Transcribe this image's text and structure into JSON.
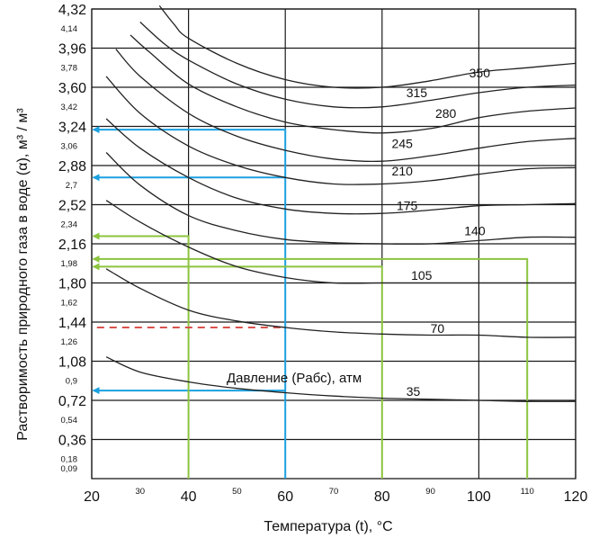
{
  "chart_data": {
    "type": "line",
    "xlabel": "Температура (t), °C",
    "ylabel": "Растворимость природного газа в воде (α), м³ / м³",
    "xlim": [
      20,
      120
    ],
    "ylim": [
      0,
      4.32
    ],
    "x_major_ticks": [
      "20",
      "40",
      "60",
      "80",
      "100",
      "120"
    ],
    "x_minor_ticks": [
      "30",
      "50",
      "70",
      "90",
      "110"
    ],
    "y_major_ticks": [
      "4,32",
      "3,96",
      "3,60",
      "3,24",
      "2,88",
      "2,52",
      "2,16",
      "1,80",
      "1,44",
      "1,08",
      "0,72",
      "0,36"
    ],
    "y_minor_ticks": [
      "4,14",
      "3,78",
      "3,42",
      "3,06",
      "2,7",
      "2,34",
      "1,98",
      "1,62",
      "1,26",
      "0,9",
      "0,54",
      "0,18",
      "0,09"
    ],
    "annotation": "Давление (Pабс), атм",
    "grid": true,
    "series": [
      {
        "name": "35",
        "x": [
          23,
          30,
          40,
          50,
          60,
          70,
          80,
          90,
          100,
          110,
          120
        ],
        "y": [
          1.12,
          0.98,
          0.89,
          0.83,
          0.79,
          0.76,
          0.74,
          0.73,
          0.72,
          0.71,
          0.71
        ]
      },
      {
        "name": "70",
        "x": [
          23,
          30,
          40,
          50,
          60,
          70,
          80,
          90,
          100,
          110,
          120
        ],
        "y": [
          1.93,
          1.75,
          1.55,
          1.45,
          1.39,
          1.35,
          1.33,
          1.32,
          1.32,
          1.3,
          1.3
        ]
      },
      {
        "name": "105",
        "x": [
          23,
          30,
          40,
          50,
          60,
          70,
          80,
          90,
          100,
          110,
          120
        ],
        "y": [
          2.56,
          2.36,
          2.13,
          1.95,
          1.85,
          1.8,
          1.8,
          1.8,
          1.8,
          1.8,
          1.8
        ]
      },
      {
        "name": "140",
        "x": [
          23,
          30,
          40,
          50,
          60,
          70,
          80,
          90,
          100,
          110,
          120
        ],
        "y": [
          3.0,
          2.7,
          2.42,
          2.28,
          2.2,
          2.17,
          2.16,
          2.16,
          2.19,
          2.22,
          2.22
        ]
      },
      {
        "name": "175",
        "x": [
          23,
          30,
          40,
          50,
          60,
          70,
          80,
          90,
          100,
          110,
          120
        ],
        "y": [
          3.31,
          3.04,
          2.77,
          2.58,
          2.48,
          2.44,
          2.44,
          2.47,
          2.51,
          2.52,
          2.53
        ]
      },
      {
        "name": "210",
        "x": [
          23,
          30,
          40,
          50,
          60,
          70,
          80,
          90,
          100,
          110,
          120
        ],
        "y": [
          3.7,
          3.36,
          3.06,
          2.88,
          2.77,
          2.71,
          2.71,
          2.74,
          2.8,
          2.85,
          2.86
        ]
      },
      {
        "name": "245",
        "x": [
          25,
          30,
          40,
          50,
          60,
          70,
          80,
          90,
          100,
          110,
          120
        ],
        "y": [
          3.95,
          3.7,
          3.36,
          3.15,
          3.02,
          2.94,
          2.92,
          2.97,
          3.04,
          3.1,
          3.13
        ]
      },
      {
        "name": "280",
        "x": [
          28,
          32,
          40,
          50,
          60,
          70,
          80,
          90,
          100,
          110,
          120
        ],
        "y": [
          4.08,
          3.92,
          3.63,
          3.42,
          3.28,
          3.21,
          3.18,
          3.22,
          3.32,
          3.38,
          3.41
        ]
      },
      {
        "name": "315",
        "x": [
          30,
          35,
          40,
          50,
          60,
          70,
          80,
          90,
          100,
          110,
          120
        ],
        "y": [
          4.2,
          4.0,
          3.85,
          3.63,
          3.49,
          3.42,
          3.42,
          3.48,
          3.55,
          3.6,
          3.62
        ]
      },
      {
        "name": "350",
        "x": [
          34,
          37,
          40,
          50,
          60,
          70,
          80,
          90,
          100,
          110,
          120
        ],
        "y": [
          4.35,
          4.18,
          4.05,
          3.82,
          3.67,
          3.6,
          3.6,
          3.66,
          3.74,
          3.78,
          3.82
        ]
      }
    ]
  }
}
